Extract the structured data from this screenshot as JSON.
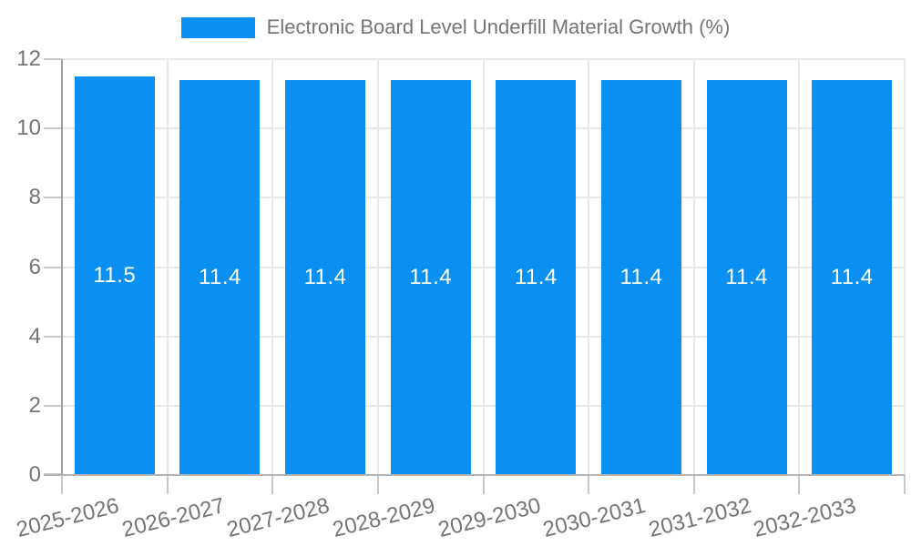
{
  "chart_data": {
    "type": "bar",
    "title": "Electronic Board Level Underfill Material Growth (%)",
    "categories": [
      "2025-2026",
      "2026-2027",
      "2027-2028",
      "2028-2029",
      "2029-2030",
      "2030-2031",
      "2031-2032",
      "2032-2033"
    ],
    "values": [
      11.5,
      11.4,
      11.4,
      11.4,
      11.4,
      11.4,
      11.4,
      11.4
    ],
    "bar_labels": [
      "11.5",
      "11.4",
      "11.4",
      "11.4",
      "11.4",
      "11.4",
      "11.4",
      "11.4"
    ],
    "y_ticks": [
      0,
      2,
      4,
      6,
      8,
      10,
      12
    ],
    "ylim": [
      0,
      12
    ],
    "xlabel": "",
    "ylabel": "",
    "grid": true,
    "legend_position": "top",
    "colors": {
      "bar": "#0a90f2",
      "bar_label_text": "#ffffff",
      "axis_text": "#757575",
      "legend_text": "#757575",
      "gridline": "#e8e8e8",
      "baseline": "#b3b3b3",
      "axis_line": "#a0a0a0",
      "tick": "#c9c9c9",
      "background": "#ffffff"
    }
  }
}
